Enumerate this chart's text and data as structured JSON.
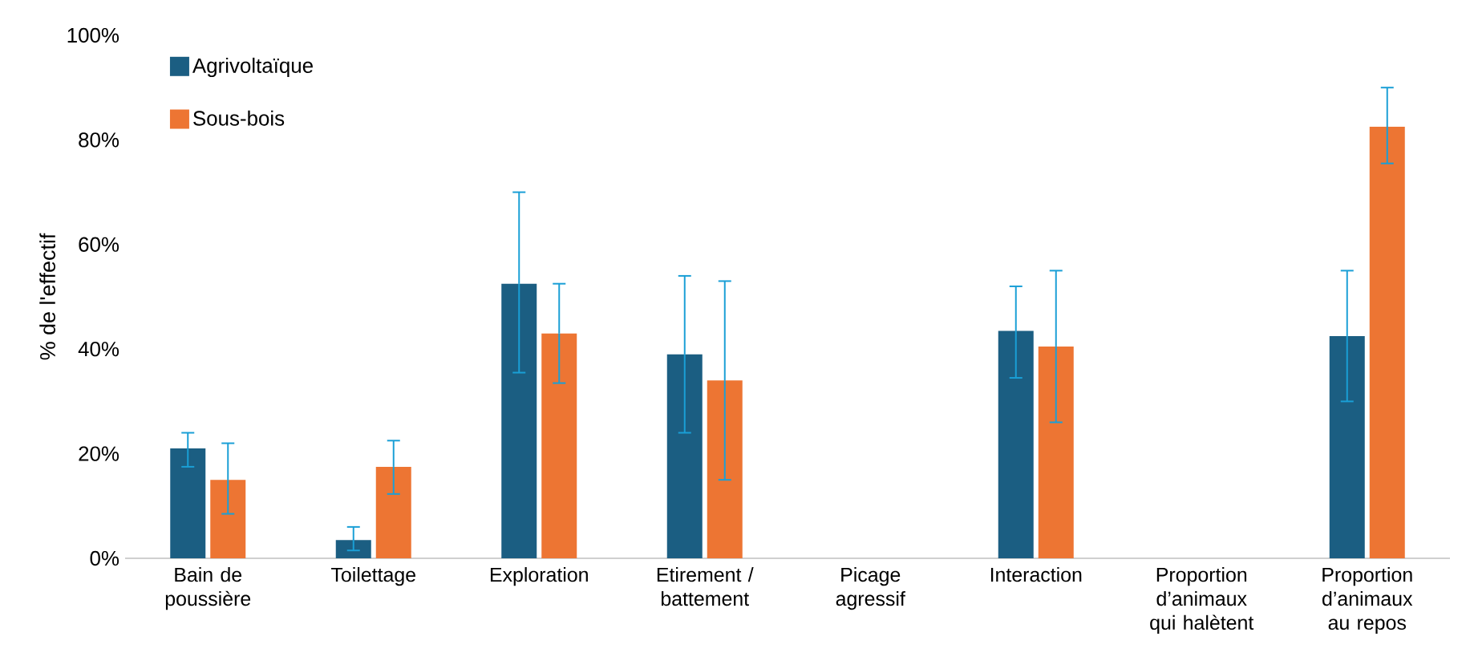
{
  "chart_data": {
    "type": "bar",
    "ylabel": "% de l'effectif",
    "categories": [
      "Bain de poussière",
      "Toilettage",
      "Exploration",
      "Etirement / battement",
      "Picage agressif",
      "Interaction",
      "Proportion d’animaux qui halètent",
      "Proportion d’animaux au repos"
    ],
    "series": [
      {
        "name": "Agrivoltaïque",
        "color": "#1b5e82",
        "values": [
          21,
          3.5,
          52.5,
          39,
          0,
          43.5,
          0,
          42.5
        ],
        "errors": [
          [
            17.5,
            24
          ],
          [
            1.5,
            6
          ],
          [
            35.5,
            70
          ],
          [
            24,
            54
          ],
          null,
          [
            34.5,
            52
          ],
          null,
          [
            30,
            55
          ]
        ]
      },
      {
        "name": "Sous-bois",
        "color": "#ed7533",
        "values": [
          15,
          17.5,
          43,
          34,
          0,
          40.5,
          0,
          82.5
        ],
        "errors": [
          [
            8.5,
            22
          ],
          [
            12.3,
            22.5
          ],
          [
            33.5,
            52.5
          ],
          [
            15,
            53
          ],
          null,
          [
            26,
            55
          ],
          null,
          [
            75.5,
            90
          ]
        ]
      }
    ],
    "ylim": [
      0,
      100
    ],
    "yticks": [
      {
        "value": 0,
        "label": "0%"
      },
      {
        "value": 20,
        "label": "20%"
      },
      {
        "value": 40,
        "label": "40%"
      },
      {
        "value": 60,
        "label": "60%"
      },
      {
        "value": 80,
        "label": "80%"
      },
      {
        "value": 100,
        "label": "100%"
      }
    ],
    "grid": false,
    "legend": "top left"
  }
}
